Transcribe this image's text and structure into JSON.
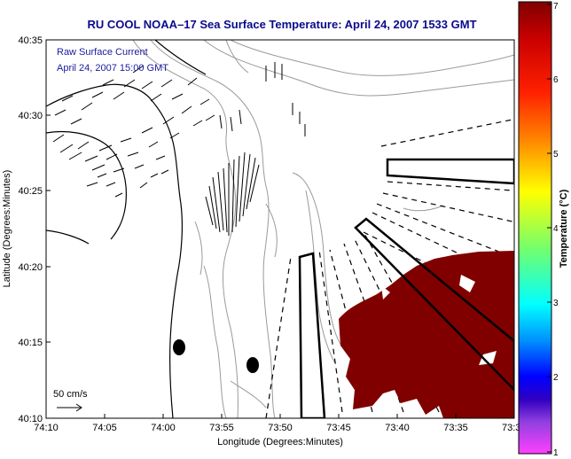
{
  "title": "RU COOL  NOAA–17  Sea Surface Temperature:  April 24, 2007 1533 GMT",
  "map": {
    "xlabel": "Longitude (Degrees:Minutes)",
    "ylabel": "Latitude (Degrees:Minutes)",
    "x_ticks": [
      "74:10",
      "74:05",
      "74:00",
      "73:55",
      "73:50",
      "73:45",
      "73:40",
      "73:35",
      "73:3"
    ],
    "y_ticks": [
      "40:35",
      "40:30",
      "40:25",
      "40:20",
      "40:15",
      "40:10"
    ],
    "annotation_line1": "Raw Surface Current",
    "annotation_line2": "April 24, 2007 15:00 GMT",
    "scale_label": "50 cm/s"
  },
  "colorbar": {
    "label": "Temperature (°C)",
    "ticks": [
      "7",
      "6",
      "5",
      "4",
      "3",
      "2",
      "1"
    ],
    "range": [
      1,
      7
    ]
  },
  "colors": {
    "title": "#0a0a8c",
    "sst_patch": "#800000",
    "contour": "#9a9a9a",
    "coast": "#000000"
  }
}
